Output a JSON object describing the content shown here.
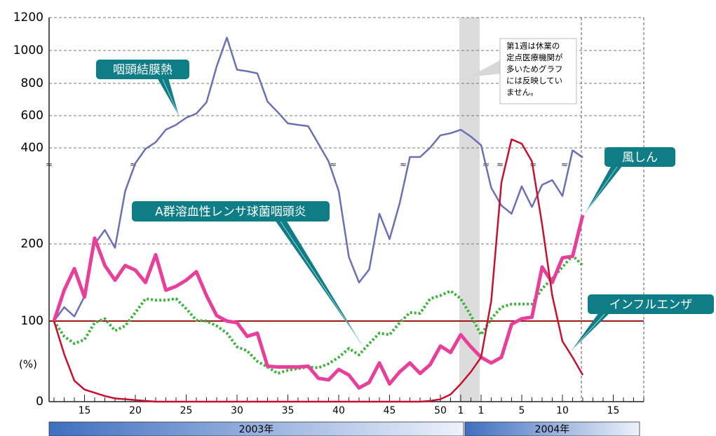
{
  "chart_data": {
    "type": "line",
    "y_unit_label": "(%)",
    "ylim": [
      0,
      1200
    ],
    "yticks": [
      0,
      100,
      200,
      400,
      600,
      800,
      1000,
      1200
    ],
    "grid": true,
    "reference_line": {
      "value": 100,
      "color": "#9b1b1b"
    },
    "categories": [
      null,
      null,
      null,
      "15",
      null,
      null,
      null,
      null,
      "20",
      null,
      null,
      null,
      null,
      "25",
      null,
      null,
      null,
      null,
      "30",
      null,
      null,
      null,
      null,
      "35",
      null,
      null,
      null,
      null,
      "40",
      null,
      null,
      null,
      null,
      "45",
      null,
      null,
      null,
      null,
      "50",
      null,
      "1",
      null,
      "1",
      null,
      null,
      null,
      "5",
      null,
      null,
      null,
      "10",
      null,
      null,
      null,
      null,
      "15",
      null,
      null,
      null
    ],
    "periods": [
      "2003年",
      "2004年"
    ],
    "note": [
      "第1週は休業の",
      "定点医療機関が",
      "多いためグラフ",
      "には反映してい",
      "ません。"
    ],
    "series": [
      {
        "name": "咽頭結膜熱",
        "color": "#6b70b6",
        "style": "solid",
        "values": [
          100,
          118,
          106,
          132,
          200,
          229,
          195,
          310,
          368,
          398,
          435,
          513,
          543,
          587,
          613,
          683,
          904,
          1078,
          883,
          874,
          861,
          687,
          622,
          552,
          543,
          535,
          426,
          372,
          310,
          183,
          150,
          167,
          263,
          210,
          285,
          381,
          381,
          402,
          478,
          491,
          513,
          470,
          417,
          317,
          280,
          263,
          320,
          277,
          323,
          333,
          300,
          395,
          380,
          null,
          null,
          null,
          null,
          null,
          null
        ]
      },
      {
        "name": "A群溶血性レンサ球菌咽頭炎",
        "color": "#3cb43c",
        "style": "dotted",
        "values": [
          100,
          81,
          72,
          77,
          98,
          103,
          88,
          94,
          111,
          129,
          127,
          127,
          129,
          116,
          101,
          100,
          94,
          85,
          68,
          63,
          50,
          43,
          35,
          39,
          41,
          43,
          42,
          47,
          55,
          66,
          58,
          72,
          85,
          83,
          98,
          111,
          110,
          129,
          133,
          139,
          129,
          107,
          83,
          103,
          118,
          122,
          122,
          122,
          142,
          155,
          170,
          185,
          172,
          null,
          null,
          null,
          null,
          null,
          null
        ]
      },
      {
        "name": "風しん",
        "color": "#e8409a",
        "style": "solid",
        "values": [
          100,
          140,
          168,
          131,
          212,
          172,
          153,
          172,
          166,
          150,
          186,
          140,
          145,
          153,
          164,
          133,
          107,
          100,
          98,
          81,
          85,
          44,
          43,
          43,
          43,
          44,
          29,
          27,
          40,
          33,
          17,
          24,
          48,
          22,
          37,
          48,
          35,
          46,
          69,
          61,
          83,
          68,
          55,
          48,
          55,
          96,
          103,
          105,
          170,
          150,
          182,
          184,
          260,
          null,
          null,
          null,
          null,
          null,
          null
        ]
      },
      {
        "name": "インフルエンザ",
        "color": "#c8102e",
        "style": "solid",
        "values": [
          100,
          59,
          26,
          15,
          11,
          7,
          4,
          3,
          2,
          1,
          0,
          0,
          0,
          0,
          0,
          0,
          0,
          0,
          0,
          0,
          0,
          0,
          0,
          0,
          0,
          0,
          0,
          0,
          0,
          0,
          0,
          0,
          0,
          0,
          0,
          0,
          0,
          1,
          3,
          9,
          22,
          37,
          55,
          126,
          328,
          453,
          426,
          372,
          241,
          133,
          75,
          55,
          33,
          null,
          null,
          null,
          null,
          null,
          null
        ]
      }
    ]
  }
}
